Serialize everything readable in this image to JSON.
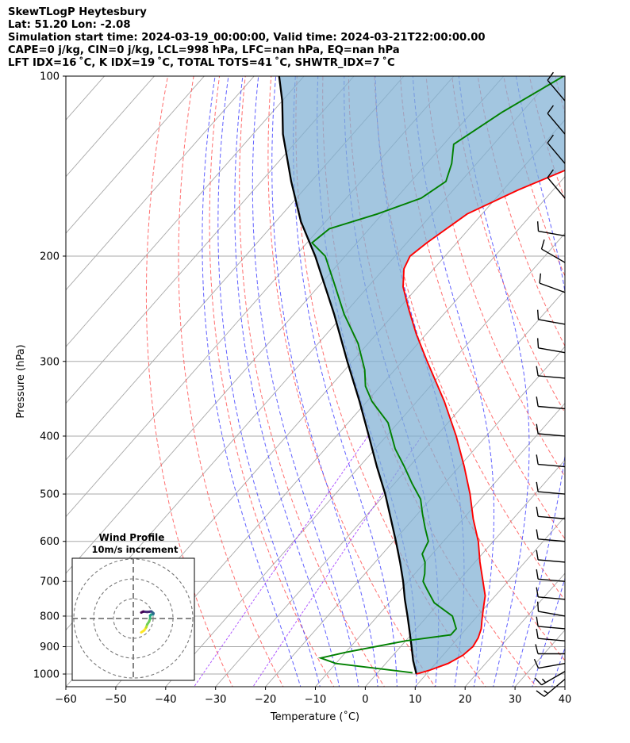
{
  "figure": {
    "title_lines": [
      "SkewTLogP Heytesbury",
      "Lat: 51.20   Lon: -2.08",
      "Simulation start time: 2024-03-19_00:00:00, Valid time: 2024-03-21T22:00:00.00",
      "CAPE=0 j/kg, CIN=0 j/kg, LCL=998 hPa, LFC=nan hPa, EQ=nan hPa",
      "LFT IDX=16 ˚C, K IDX=19 ˚C, TOTAL TOTS=41 ˚C, SHWTR_IDX=7 ˚C"
    ]
  },
  "chart_data": {
    "type": "line",
    "subtype": "skew-T log-P diagram",
    "xlabel": "Temperature (˚C)",
    "ylabel": "Pressure (hPa)",
    "xlim": [
      -60,
      40
    ],
    "ylim": [
      1050,
      100
    ],
    "yscale": "log",
    "x_ticks": [
      -60,
      -50,
      -40,
      -30,
      -20,
      -10,
      0,
      10,
      20,
      30,
      40
    ],
    "y_ticks": [
      100,
      200,
      300,
      400,
      500,
      600,
      700,
      800,
      900,
      1000
    ],
    "grid": true,
    "colors": {
      "temperature": "#ff0000",
      "dewpoint": "#008000",
      "parcel": "#000000",
      "cin_shading": "#7fb0d4",
      "dry_adiabats": "#ff5555",
      "moist_adiabats": "#4444ff",
      "mixing_ratio": "#9b30ff",
      "isotherms": "#a8a8a8"
    },
    "series": [
      {
        "key": "temperature",
        "points": [
          [
            8.0,
            1000
          ],
          [
            10.0,
            985
          ],
          [
            12.5,
            960
          ],
          [
            14.0,
            930
          ],
          [
            14.5,
            900
          ],
          [
            14.0,
            870
          ],
          [
            13.0,
            840
          ],
          [
            11.5,
            810
          ],
          [
            10.0,
            780
          ],
          [
            8.0,
            740
          ],
          [
            5.0,
            700
          ],
          [
            1.0,
            650
          ],
          [
            -3.0,
            600
          ],
          [
            -8.0,
            550
          ],
          [
            -13.0,
            500
          ],
          [
            -19.0,
            450
          ],
          [
            -26.0,
            400
          ],
          [
            -34.5,
            350
          ],
          [
            -45.0,
            300
          ],
          [
            -52.0,
            270
          ],
          [
            -58.0,
            245
          ],
          [
            -63.0,
            225
          ],
          [
            -66.0,
            210
          ],
          [
            -67.0,
            200
          ],
          [
            -66.0,
            190
          ],
          [
            -63.0,
            170
          ],
          [
            -57.0,
            155
          ],
          [
            -49.0,
            140
          ],
          [
            -44.0,
            125
          ],
          [
            -41.5,
            115
          ],
          [
            -40.0,
            108
          ],
          [
            -39.0,
            100
          ]
        ]
      },
      {
        "key": "dewpoint",
        "points": [
          [
            7.0,
            995
          ],
          [
            -10.0,
            960
          ],
          [
            -14.0,
            940
          ],
          [
            -10.0,
            920
          ],
          [
            0.0,
            880
          ],
          [
            8.0,
            860
          ],
          [
            8.0,
            840
          ],
          [
            5.0,
            800
          ],
          [
            -1.0,
            760
          ],
          [
            -5.0,
            720
          ],
          [
            -7.0,
            700
          ],
          [
            -8.0,
            680
          ],
          [
            -10.0,
            650
          ],
          [
            -12.0,
            630
          ],
          [
            -13.0,
            600
          ],
          [
            -16.0,
            570
          ],
          [
            -19.0,
            540
          ],
          [
            -22.0,
            510
          ],
          [
            -26.5,
            480
          ],
          [
            -31.0,
            450
          ],
          [
            -36.0,
            420
          ],
          [
            -42.0,
            380
          ],
          [
            -49.0,
            350
          ],
          [
            -53.0,
            330
          ],
          [
            -56.0,
            310
          ],
          [
            -62.0,
            280
          ],
          [
            -70.0,
            250
          ],
          [
            -78.0,
            220
          ],
          [
            -84.0,
            200
          ],
          [
            -89.0,
            190
          ],
          [
            -88.0,
            180
          ],
          [
            -81.0,
            170
          ],
          [
            -75.0,
            160
          ],
          [
            -73.0,
            150
          ],
          [
            -75.0,
            140
          ],
          [
            -78.0,
            130
          ],
          [
            -74.0,
            115
          ],
          [
            -68.0,
            100
          ]
        ]
      },
      {
        "key": "parcel",
        "points": [
          [
            8.0,
            1000
          ],
          [
            5.0,
            950
          ],
          [
            2.2,
            900
          ],
          [
            -0.8,
            850
          ],
          [
            -4.0,
            800
          ],
          [
            -7.5,
            750
          ],
          [
            -11.0,
            700
          ],
          [
            -15.0,
            650
          ],
          [
            -19.5,
            600
          ],
          [
            -24.5,
            550
          ],
          [
            -30.0,
            500
          ],
          [
            -36.5,
            450
          ],
          [
            -43.5,
            400
          ],
          [
            -51.5,
            350
          ],
          [
            -61.0,
            300
          ],
          [
            -72.0,
            250
          ],
          [
            -86.0,
            200
          ],
          [
            -95.0,
            175
          ],
          [
            -104.0,
            150
          ],
          [
            -114.0,
            125
          ],
          [
            -120.0,
            110
          ],
          [
            -125.0,
            100
          ]
        ]
      }
    ],
    "wind_barbs": [
      {
        "p": 1020,
        "speed_kt": 15,
        "dir_deg": 230
      },
      {
        "p": 990,
        "speed_kt": 15,
        "dir_deg": 240
      },
      {
        "p": 960,
        "speed_kt": 10,
        "dir_deg": 260
      },
      {
        "p": 925,
        "speed_kt": 10,
        "dir_deg": 270
      },
      {
        "p": 880,
        "speed_kt": 10,
        "dir_deg": 275
      },
      {
        "p": 840,
        "speed_kt": 10,
        "dir_deg": 275
      },
      {
        "p": 800,
        "speed_kt": 10,
        "dir_deg": 280
      },
      {
        "p": 750,
        "speed_kt": 10,
        "dir_deg": 275
      },
      {
        "p": 700,
        "speed_kt": 10,
        "dir_deg": 275
      },
      {
        "p": 650,
        "speed_kt": 10,
        "dir_deg": 275
      },
      {
        "p": 600,
        "speed_kt": 10,
        "dir_deg": 275
      },
      {
        "p": 550,
        "speed_kt": 10,
        "dir_deg": 275
      },
      {
        "p": 500,
        "speed_kt": 10,
        "dir_deg": 275
      },
      {
        "p": 450,
        "speed_kt": 10,
        "dir_deg": 275
      },
      {
        "p": 400,
        "speed_kt": 10,
        "dir_deg": 275
      },
      {
        "p": 360,
        "speed_kt": 10,
        "dir_deg": 275
      },
      {
        "p": 320,
        "speed_kt": 10,
        "dir_deg": 275
      },
      {
        "p": 290,
        "speed_kt": 10,
        "dir_deg": 280
      },
      {
        "p": 260,
        "speed_kt": 10,
        "dir_deg": 280
      },
      {
        "p": 230,
        "speed_kt": 10,
        "dir_deg": 290
      },
      {
        "p": 205,
        "speed_kt": 10,
        "dir_deg": 300
      },
      {
        "p": 185,
        "speed_kt": 10,
        "dir_deg": 280
      },
      {
        "p": 160,
        "speed_kt": 10,
        "dir_deg": 320
      },
      {
        "p": 140,
        "speed_kt": 10,
        "dir_deg": 320
      },
      {
        "p": 125,
        "speed_kt": 10,
        "dir_deg": 320
      },
      {
        "p": 110,
        "speed_kt": 10,
        "dir_deg": 320
      }
    ],
    "hodograph": {
      "title": "Wind Profile",
      "subtitle": "10m/s increment",
      "ring_increment_ms": 10,
      "rings": [
        10,
        20,
        30
      ],
      "colormap": "viridis",
      "points": [
        [
          4.0,
          -7.0
        ],
        [
          5.5,
          -6.0
        ],
        [
          6.5,
          -4.5
        ],
        [
          7.0,
          -3.0
        ],
        [
          8.0,
          -1.5
        ],
        [
          8.5,
          0.0
        ],
        [
          8.5,
          1.5
        ],
        [
          9.0,
          2.0
        ],
        [
          10.0,
          2.0
        ],
        [
          10.2,
          2.6
        ],
        [
          9.6,
          3.2
        ],
        [
          9.0,
          3.6
        ],
        [
          8.0,
          3.4
        ],
        [
          7.0,
          3.3
        ],
        [
          5.0,
          3.5
        ],
        [
          4.0,
          3.0
        ]
      ]
    }
  }
}
